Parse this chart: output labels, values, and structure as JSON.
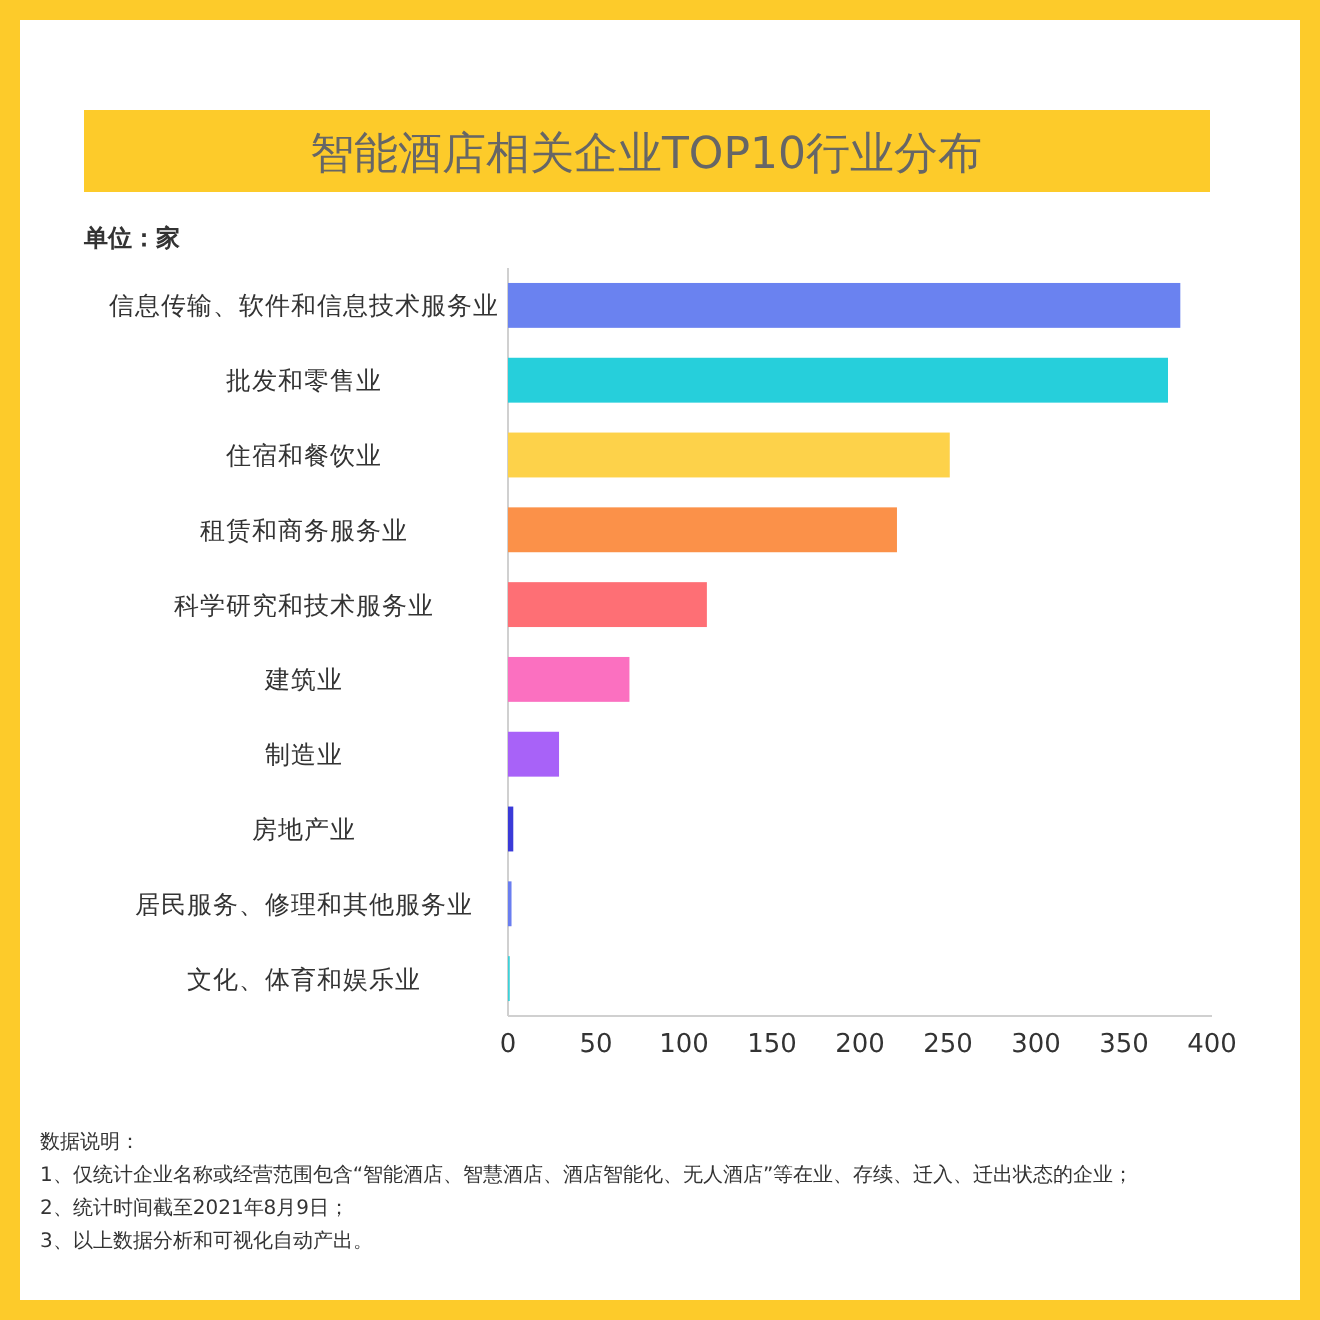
{
  "chart_data": {
    "type": "bar",
    "orientation": "horizontal",
    "title": "智能酒店相关企业TOP10行业分布",
    "categories": [
      "信息传输、软件和信息技术服务业",
      "批发和零售业",
      "住宿和餐饮业",
      "租赁和商务服务业",
      "科学研究和技术服务业",
      "建筑业",
      "制造业",
      "房地产业",
      "居民服务、修理和其他服务业",
      "文化、体育和娱乐业"
    ],
    "values": [
      382,
      375,
      251,
      221,
      113,
      69,
      29,
      3,
      2,
      1
    ],
    "colors": [
      "#6a82f0",
      "#26cfdb",
      "#fdd24a",
      "#fb9149",
      "#fe6f75",
      "#fb70c0",
      "#a862f8",
      "#3a3ad8",
      "#6a7ef0",
      "#3cd0d8"
    ],
    "xlim": [
      0,
      400
    ],
    "xticks": [
      0,
      50,
      100,
      150,
      200,
      250,
      300,
      350,
      400
    ],
    "annotations": [
      "单位：家",
      "数据说明：",
      "1、仅统计企业名称或经营范围包含“智能酒店、智慧酒店、酒店智能化、无人酒店”等在业、存续、迁入、迁出状态的企业；",
      "2、统计时间截至2021年8月9日；",
      "3、以上数据分析和可视化自动产出。"
    ]
  }
}
